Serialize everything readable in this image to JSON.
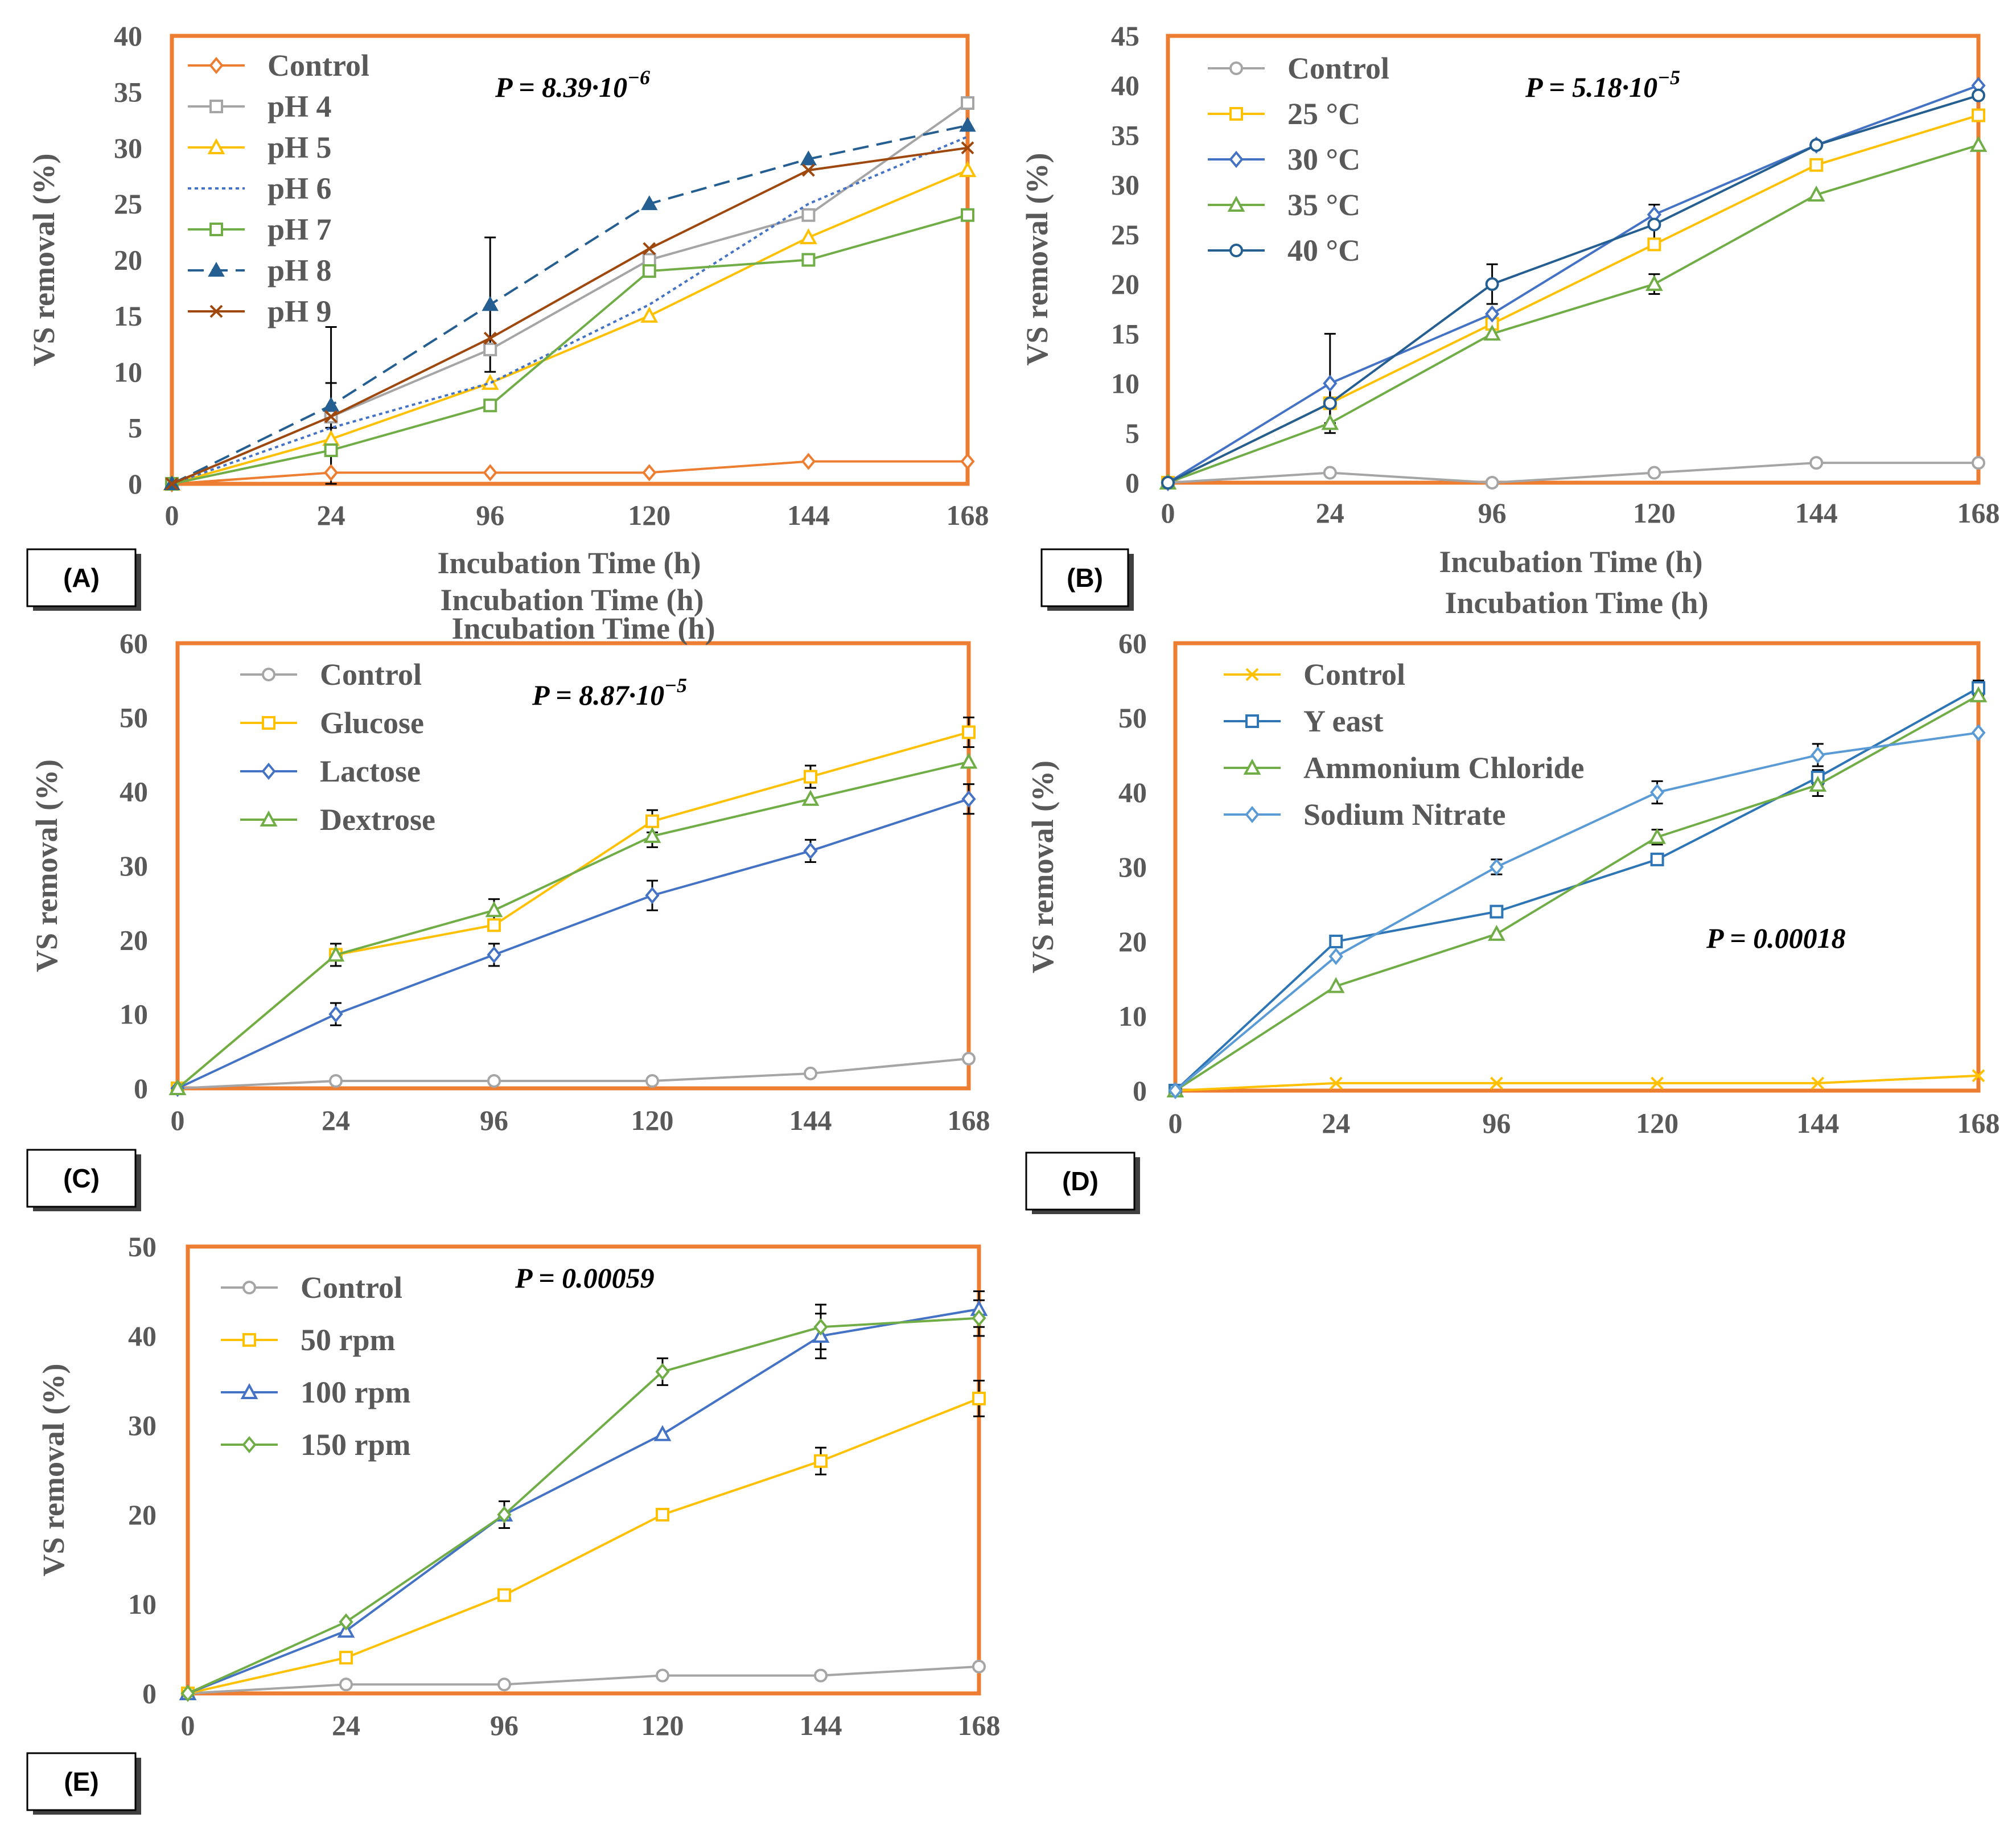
{
  "figure": {
    "xlabel_common": "Incubation  Time (h)",
    "ylabel_common": "VS removal (%)",
    "frame_color": "#ED7D31"
  },
  "chart_data": [
    {
      "id": "A",
      "panel_label": "(A)",
      "type": "line",
      "title": "",
      "xlabel": "Incubation  Time (h)",
      "ylabel": "VS removal (%)",
      "categories": [
        "0",
        "24",
        "96",
        "120",
        "144",
        "168"
      ],
      "ylim": [
        0,
        40
      ],
      "ystep": 5,
      "p_value": {
        "prefix": "P = 8.39·10",
        "exp": "−6"
      },
      "legend": "top-left",
      "series": [
        {
          "name": "Control",
          "color": "#ED7D31",
          "marker": "diamond",
          "dash": "",
          "values": [
            0,
            1,
            1,
            1,
            2,
            2
          ]
        },
        {
          "name": "pH 4",
          "color": "#A5A5A5",
          "marker": "square",
          "dash": "",
          "values": [
            0,
            6,
            12,
            20,
            24,
            34
          ]
        },
        {
          "name": "pH 5",
          "color": "#FFC000",
          "marker": "triangle",
          "dash": "",
          "values": [
            0,
            4,
            9,
            15,
            22,
            28
          ]
        },
        {
          "name": "pH 6",
          "color": "#4472C4",
          "marker": "none",
          "dash": "6,6",
          "values": [
            0,
            5,
            9,
            16,
            25,
            31
          ]
        },
        {
          "name": "pH 7",
          "color": "#70AD47",
          "marker": "square",
          "dash": "",
          "values": [
            0,
            3,
            7,
            19,
            20,
            24
          ]
        },
        {
          "name": "pH 8",
          "color": "#255E91",
          "marker": "triangle-filled",
          "dash": "28,14",
          "values": [
            0,
            7,
            16,
            25,
            29,
            32
          ]
        },
        {
          "name": "pH 9",
          "color": "#9E480E",
          "marker": "x",
          "dash": "",
          "values": [
            0,
            6,
            13,
            21,
            28,
            30
          ]
        }
      ]
    },
    {
      "id": "B",
      "panel_label": "(B)",
      "type": "line",
      "title": "",
      "xlabel": "Incubation  Time (h)",
      "ylabel": "VS removal (%)",
      "categories": [
        "0",
        "24",
        "96",
        "120",
        "144",
        "168"
      ],
      "ylim": [
        0,
        45
      ],
      "ystep": 5,
      "p_value": {
        "prefix": "P = 5.18·10",
        "exp": "−5"
      },
      "legend": "top-left",
      "series": [
        {
          "name": "Control",
          "color": "#A5A5A5",
          "marker": "circle",
          "dash": "",
          "values": [
            0,
            1,
            0,
            1,
            2,
            2
          ]
        },
        {
          "name": "25 °C",
          "color": "#FFC000",
          "marker": "square",
          "dash": "",
          "values": [
            0,
            8,
            16,
            24,
            32,
            37
          ]
        },
        {
          "name": "30 °C",
          "color": "#4472C4",
          "marker": "diamond",
          "dash": "",
          "values": [
            0,
            10,
            17,
            27,
            34,
            40
          ]
        },
        {
          "name": "35 °C",
          "color": "#70AD47",
          "marker": "triangle",
          "dash": "",
          "values": [
            0,
            6,
            15,
            20,
            29,
            34
          ]
        },
        {
          "name": "40 °C",
          "color": "#255E91",
          "marker": "circle",
          "dash": "",
          "values": [
            0,
            8,
            20,
            26,
            34,
            39
          ]
        }
      ]
    },
    {
      "id": "C",
      "panel_label": "(C)",
      "type": "line",
      "title": "",
      "xlabel": "Incubation  Time (h)",
      "ylabel": "VS removal (%)",
      "categories": [
        "0",
        "24",
        "96",
        "120",
        "144",
        "168"
      ],
      "ylim": [
        0,
        60
      ],
      "ystep": 10,
      "p_value": {
        "prefix": "P = 8.87·10",
        "exp": "−5"
      },
      "legend": "top-left",
      "series": [
        {
          "name": "Control",
          "color": "#A5A5A5",
          "marker": "circle",
          "dash": "",
          "values": [
            0,
            1,
            1,
            1,
            2,
            4
          ]
        },
        {
          "name": "Glucose",
          "color": "#FFC000",
          "marker": "square",
          "dash": "",
          "values": [
            0,
            18,
            22,
            36,
            42,
            48
          ]
        },
        {
          "name": "Lactose",
          "color": "#4472C4",
          "marker": "diamond",
          "dash": "",
          "values": [
            0,
            10,
            18,
            26,
            32,
            39
          ]
        },
        {
          "name": "Dextrose",
          "color": "#70AD47",
          "marker": "triangle",
          "dash": "",
          "values": [
            0,
            18,
            24,
            34,
            39,
            44
          ]
        }
      ]
    },
    {
      "id": "D",
      "panel_label": "(D)",
      "type": "line",
      "title": "",
      "xlabel": "Incubation  Time (h)",
      "ylabel": "VS removal (%)",
      "categories": [
        "0",
        "24",
        "96",
        "120",
        "144",
        "168"
      ],
      "ylim": [
        0,
        60
      ],
      "ystep": 10,
      "p_value": {
        "prefix": "P = 0.00018",
        "exp": ""
      },
      "legend": "top-left",
      "series": [
        {
          "name": "Control",
          "color": "#FFC000",
          "marker": "x",
          "dash": "",
          "values": [
            0,
            1,
            1,
            1,
            1,
            2
          ]
        },
        {
          "name": "Y east",
          "color": "#2E75B6",
          "marker": "square",
          "dash": "",
          "values": [
            0,
            20,
            24,
            31,
            42,
            54
          ]
        },
        {
          "name": "Ammonium Chloride",
          "color": "#70AD47",
          "marker": "triangle",
          "dash": "",
          "values": [
            0,
            14,
            21,
            34,
            41,
            53
          ]
        },
        {
          "name": "Sodium Nitrate",
          "color": "#5B9BD5",
          "marker": "diamond",
          "dash": "",
          "values": [
            0,
            18,
            30,
            40,
            45,
            48
          ]
        }
      ]
    },
    {
      "id": "E",
      "panel_label": "(E)",
      "type": "line",
      "title": "",
      "xlabel": "Incubation  Time (h)",
      "ylabel": "VS removal (%)",
      "categories": [
        "0",
        "24",
        "96",
        "120",
        "144",
        "168"
      ],
      "ylim": [
        0,
        50
      ],
      "ystep": 10,
      "p_value": {
        "prefix": "P = 0.00059",
        "exp": ""
      },
      "legend": "top-left",
      "series": [
        {
          "name": "Control",
          "color": "#A5A5A5",
          "marker": "circle",
          "dash": "",
          "values": [
            0,
            1,
            1,
            2,
            2,
            3
          ]
        },
        {
          "name": "50 rpm",
          "color": "#FFC000",
          "marker": "square",
          "dash": "",
          "values": [
            0,
            4,
            11,
            20,
            26,
            33
          ]
        },
        {
          "name": "100 rpm",
          "color": "#4472C4",
          "marker": "triangle",
          "dash": "",
          "values": [
            0,
            7,
            20,
            29,
            40,
            43
          ]
        },
        {
          "name": "150 rpm",
          "color": "#70AD47",
          "marker": "diamond",
          "dash": "",
          "values": [
            0,
            8,
            20,
            36,
            41,
            42
          ]
        }
      ]
    }
  ]
}
